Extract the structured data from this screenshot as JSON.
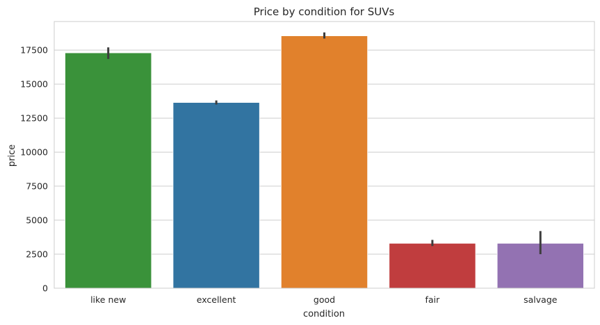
{
  "chart_data": {
    "type": "bar",
    "title": "Price by condition for SUVs",
    "xlabel": "condition",
    "ylabel": "price",
    "categories": [
      "like new",
      "excellent",
      "good",
      "fair",
      "salvage"
    ],
    "values": [
      17300,
      13650,
      18550,
      3300,
      3300
    ],
    "error_low": [
      16850,
      13500,
      18350,
      3100,
      2500
    ],
    "error_high": [
      17700,
      13800,
      18800,
      3550,
      4200
    ],
    "colors": [
      "#3a923a",
      "#3274a1",
      "#e1812c",
      "#c03d3e",
      "#9372b2"
    ],
    "ylim": [
      0,
      19600
    ],
    "yticks": [
      0,
      2500,
      5000,
      7500,
      10000,
      12500,
      15000,
      17500
    ],
    "ytick_labels": [
      "0",
      "2500",
      "5000",
      "7500",
      "10000",
      "12500",
      "15000",
      "17500"
    ],
    "grid": "horizontal",
    "legend": "none",
    "style": "seaborn whitegrid"
  }
}
